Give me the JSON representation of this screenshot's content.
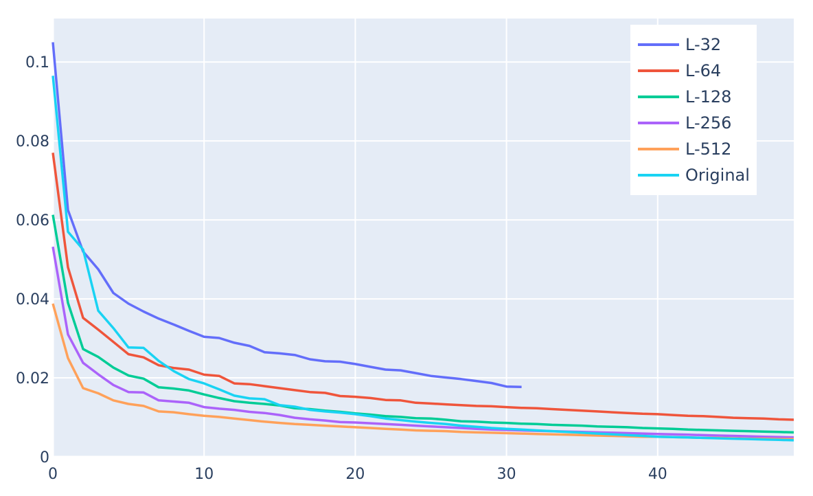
{
  "chart_data": {
    "type": "line",
    "title": "",
    "xlabel": "",
    "ylabel": "",
    "xlim": [
      0,
      49
    ],
    "ylim": [
      0,
      0.111
    ],
    "grid": true,
    "legend_position": "top-right",
    "x_ticks": [
      "0",
      "10",
      "20",
      "30",
      "40"
    ],
    "y_ticks": [
      "0",
      "0.02",
      "0.04",
      "0.06",
      "0.08",
      "0.1"
    ],
    "x_tick_values": [
      0,
      10,
      20,
      30,
      40
    ],
    "y_tick_values": [
      0,
      0.02,
      0.04,
      0.06,
      0.08,
      0.1
    ],
    "colors": {
      "plot_background": "#e5ecf6",
      "grid": "#ffffff",
      "text": "#2a3f5f"
    },
    "series": [
      {
        "name": "L-32",
        "color": "#636efa",
        "x": [
          0,
          1,
          2,
          3,
          4,
          5,
          6,
          7,
          8,
          9,
          10,
          11,
          12,
          13,
          14,
          15,
          16,
          17,
          18,
          19,
          20,
          21,
          22,
          23,
          24,
          25,
          26,
          27,
          28,
          29,
          30,
          31
        ],
        "values": [
          0.105,
          0.0625,
          0.052,
          0.0475,
          0.0415,
          0.0388,
          0.0368,
          0.035,
          0.0335,
          0.0319,
          0.0304,
          0.0301,
          0.0289,
          0.0281,
          0.0265,
          0.0262,
          0.0258,
          0.0247,
          0.0242,
          0.0241,
          0.0235,
          0.0228,
          0.0221,
          0.0219,
          0.0212,
          0.0205,
          0.0201,
          0.0197,
          0.0192,
          0.0187,
          0.0178,
          0.0177
        ]
      },
      {
        "name": "L-64",
        "color": "#ef553b",
        "x": [
          0,
          1,
          2,
          3,
          4,
          5,
          6,
          7,
          8,
          9,
          10,
          11,
          12,
          13,
          14,
          15,
          16,
          17,
          18,
          19,
          20,
          21,
          22,
          23,
          24,
          25,
          26,
          27,
          28,
          29,
          30,
          31,
          32,
          33,
          34,
          35,
          36,
          37,
          38,
          39,
          40,
          41,
          42,
          43,
          44,
          45,
          46,
          47,
          48,
          49
        ],
        "values": [
          0.077,
          0.048,
          0.0352,
          0.0322,
          0.0291,
          0.026,
          0.0252,
          0.0232,
          0.0225,
          0.0221,
          0.0208,
          0.0205,
          0.0186,
          0.0184,
          0.0179,
          0.0174,
          0.0169,
          0.0164,
          0.0162,
          0.0154,
          0.0152,
          0.0149,
          0.0144,
          0.0143,
          0.0137,
          0.0135,
          0.0133,
          0.0131,
          0.0129,
          0.0128,
          0.0126,
          0.0124,
          0.0123,
          0.0121,
          0.0119,
          0.0117,
          0.0115,
          0.0113,
          0.0111,
          0.0109,
          0.0108,
          0.0106,
          0.0104,
          0.0103,
          0.0101,
          0.0099,
          0.0098,
          0.0097,
          0.0095,
          0.0094
        ]
      },
      {
        "name": "L-128",
        "color": "#00cc96",
        "x": [
          0,
          1,
          2,
          3,
          4,
          5,
          6,
          7,
          8,
          9,
          10,
          11,
          12,
          13,
          14,
          15,
          16,
          17,
          18,
          19,
          20,
          21,
          22,
          23,
          24,
          25,
          26,
          27,
          28,
          29,
          30,
          31,
          32,
          33,
          34,
          35,
          36,
          37,
          38,
          39,
          40,
          41,
          42,
          43,
          44,
          45,
          46,
          47,
          48,
          49
        ],
        "values": [
          0.0613,
          0.039,
          0.0273,
          0.0253,
          0.0226,
          0.0206,
          0.0198,
          0.0176,
          0.0173,
          0.0168,
          0.0158,
          0.0149,
          0.0141,
          0.0137,
          0.0134,
          0.013,
          0.0123,
          0.0121,
          0.0117,
          0.0114,
          0.011,
          0.0107,
          0.0103,
          0.0101,
          0.0098,
          0.0097,
          0.0094,
          0.009,
          0.0089,
          0.0087,
          0.0086,
          0.0084,
          0.0083,
          0.0081,
          0.008,
          0.0079,
          0.0077,
          0.0076,
          0.0075,
          0.0073,
          0.0072,
          0.0071,
          0.0069,
          0.0068,
          0.0067,
          0.0066,
          0.0065,
          0.0064,
          0.0063,
          0.0062
        ]
      },
      {
        "name": "L-256",
        "color": "#ab63fa",
        "x": [
          0,
          1,
          2,
          3,
          4,
          5,
          6,
          7,
          8,
          9,
          10,
          11,
          12,
          13,
          14,
          15,
          16,
          17,
          18,
          19,
          20,
          21,
          22,
          23,
          24,
          25,
          26,
          27,
          28,
          29,
          30,
          31,
          32,
          33,
          34,
          35,
          36,
          37,
          38,
          39,
          40,
          41,
          42,
          43,
          44,
          45,
          46,
          47,
          48,
          49
        ],
        "values": [
          0.0532,
          0.031,
          0.0238,
          0.0209,
          0.0182,
          0.0164,
          0.0163,
          0.0143,
          0.014,
          0.0137,
          0.0126,
          0.0122,
          0.0119,
          0.0114,
          0.0111,
          0.0106,
          0.0099,
          0.0095,
          0.0092,
          0.0088,
          0.0087,
          0.0085,
          0.0083,
          0.0081,
          0.0079,
          0.0077,
          0.0075,
          0.0073,
          0.0071,
          0.0069,
          0.0068,
          0.0067,
          0.0066,
          0.0065,
          0.0064,
          0.0063,
          0.0062,
          0.0061,
          0.006,
          0.0059,
          0.0058,
          0.0057,
          0.0056,
          0.0055,
          0.0054,
          0.0053,
          0.0052,
          0.0051,
          0.005,
          0.0049
        ]
      },
      {
        "name": "L-512",
        "color": "#ffa15a",
        "x": [
          0,
          1,
          2,
          3,
          4,
          5,
          6,
          7,
          8,
          9,
          10,
          11,
          12,
          13,
          14,
          15,
          16,
          17,
          18,
          19,
          20,
          21,
          22,
          23,
          24,
          25,
          26,
          27,
          28,
          29,
          30,
          31,
          32,
          33,
          34,
          35,
          36,
          37,
          38,
          39,
          40,
          41,
          42,
          43,
          44,
          45,
          46,
          47,
          48,
          49
        ],
        "values": [
          0.0388,
          0.025,
          0.0174,
          0.0161,
          0.0143,
          0.0134,
          0.0129,
          0.0115,
          0.0113,
          0.0108,
          0.0104,
          0.0101,
          0.0097,
          0.0093,
          0.0089,
          0.0086,
          0.0083,
          0.0081,
          0.0079,
          0.0077,
          0.0075,
          0.0073,
          0.0071,
          0.0069,
          0.0067,
          0.0066,
          0.0065,
          0.0063,
          0.0062,
          0.0061,
          0.006,
          0.0059,
          0.0058,
          0.0057,
          0.0056,
          0.0055,
          0.0054,
          0.0053,
          0.0052,
          0.0051,
          0.0051,
          0.005,
          0.0049,
          0.0048,
          0.0048,
          0.0047,
          0.0046,
          0.0046,
          0.0045,
          0.0045
        ]
      },
      {
        "name": "Original",
        "color": "#19d3f3",
        "x": [
          0,
          1,
          2,
          3,
          4,
          5,
          6,
          7,
          8,
          9,
          10,
          11,
          12,
          13,
          14,
          15,
          16,
          17,
          18,
          19,
          20,
          21,
          22,
          23,
          24,
          25,
          26,
          27,
          28,
          29,
          30,
          31,
          32,
          33,
          34,
          35,
          36,
          37,
          38,
          39,
          40,
          41,
          42,
          43,
          44,
          45,
          46,
          47,
          48,
          49
        ],
        "values": [
          0.0965,
          0.057,
          0.0525,
          0.037,
          0.0326,
          0.0277,
          0.0276,
          0.0243,
          0.0217,
          0.0197,
          0.0186,
          0.0171,
          0.0155,
          0.0148,
          0.0146,
          0.0131,
          0.0127,
          0.0119,
          0.0115,
          0.0112,
          0.0108,
          0.0103,
          0.0097,
          0.0093,
          0.0089,
          0.0086,
          0.0083,
          0.0079,
          0.0076,
          0.0073,
          0.0071,
          0.0069,
          0.0067,
          0.0065,
          0.0063,
          0.0061,
          0.0059,
          0.0057,
          0.0055,
          0.0053,
          0.0051,
          0.005,
          0.0049,
          0.0048,
          0.0047,
          0.0046,
          0.0045,
          0.0044,
          0.0043,
          0.0042
        ]
      }
    ]
  }
}
